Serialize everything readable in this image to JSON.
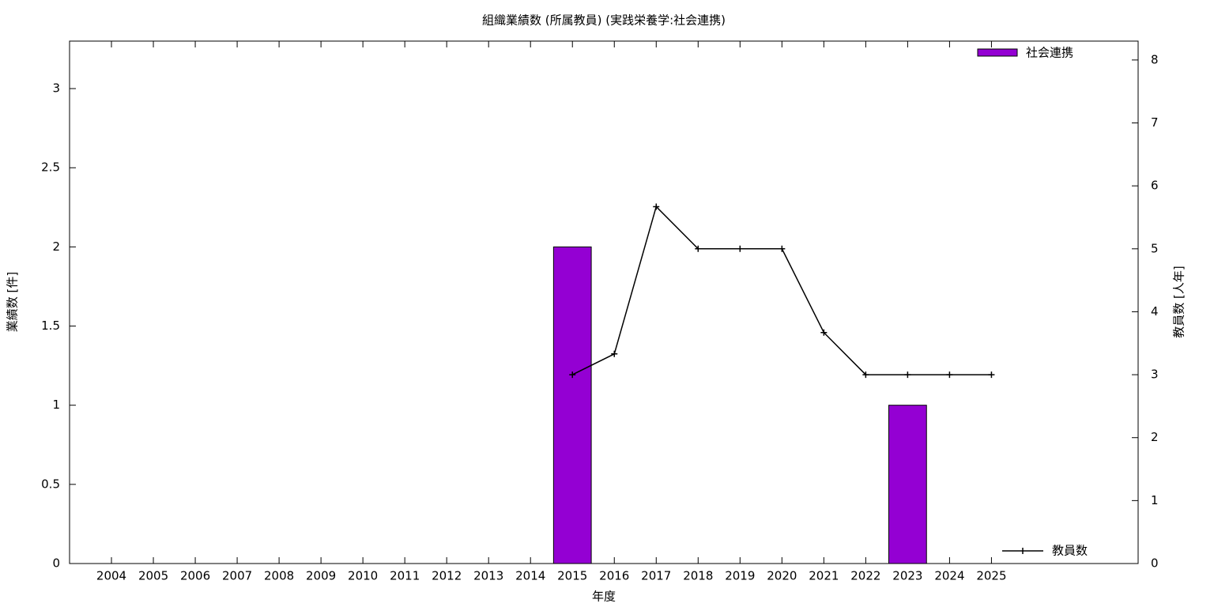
{
  "chart_data": {
    "type": "bar_line",
    "title": "組織業績数 (所属教員) (実践栄養学:社会連携)",
    "x_label": "年度",
    "y_label": "業績数 [件]",
    "y2_label": "教員数 [人年]",
    "categories": [
      "2004",
      "2005",
      "2006",
      "2007",
      "2008",
      "2009",
      "2010",
      "2011",
      "2012",
      "2013",
      "2014",
      "2015",
      "2016",
      "2017",
      "2018",
      "2019",
      "2020",
      "2021",
      "2022",
      "2023",
      "2024",
      "2025"
    ],
    "series": [
      {
        "name": "社会連携",
        "type": "bar",
        "color": "#9400d3",
        "values": [
          0,
          0,
          0,
          0,
          0,
          0,
          0,
          0,
          0,
          0,
          0,
          2,
          0,
          0,
          0,
          0,
          0,
          0,
          0,
          1,
          0,
          0
        ]
      },
      {
        "name": "教員数",
        "type": "line",
        "axis": "y2",
        "color": "#000000",
        "values": [
          null,
          null,
          null,
          null,
          null,
          null,
          null,
          null,
          null,
          null,
          null,
          3,
          3.33,
          5.67,
          5,
          5,
          5,
          3.67,
          3,
          3,
          3,
          3
        ]
      }
    ],
    "ylim": [
      0,
      3.3
    ],
    "yticks": [
      0,
      0.5,
      1,
      1.5,
      2,
      2.5,
      3
    ],
    "y2lim": [
      0,
      8.3
    ],
    "y2ticks": [
      0,
      1,
      2,
      3,
      4,
      5,
      6,
      7,
      8
    ]
  }
}
